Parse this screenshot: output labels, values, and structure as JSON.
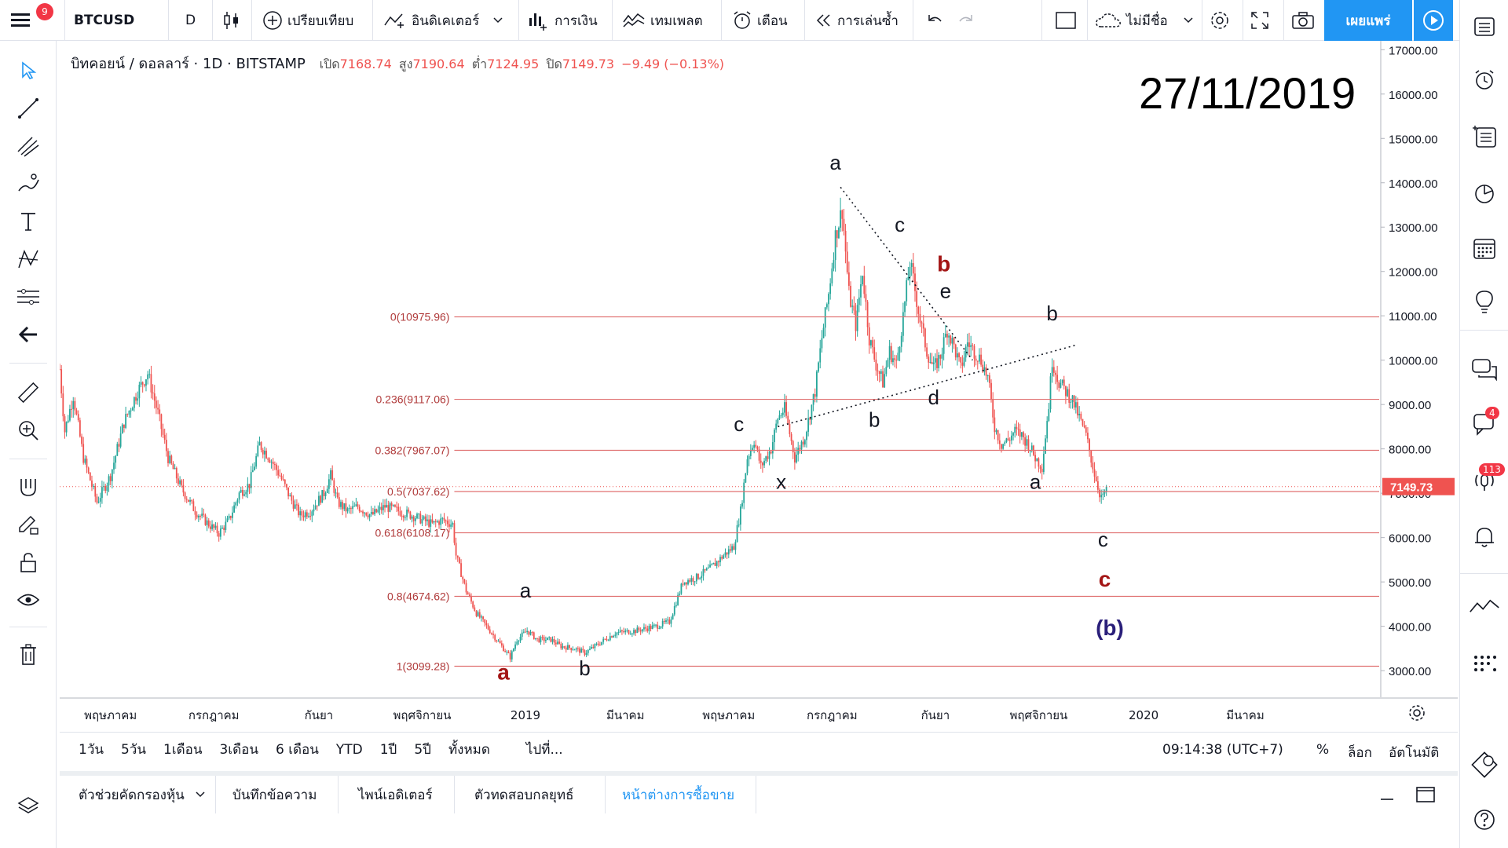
{
  "toolbar": {
    "notifications": "9",
    "ticker": "BTCUSD",
    "interval": "D",
    "compare": "เปรียบเทียบ",
    "indicators": "อินดิเคเตอร์",
    "financials": "การเงิน",
    "templates": "เทมเพลต",
    "alert": "เตือน",
    "replay": "การเล่นซ้ำ",
    "layout_name": "ไม่มีชื่อ",
    "publish": "เผยแพร่"
  },
  "legend": {
    "symbol": "บิทคอยน์ / ดอลลาร์ · 1D · BITSTAMP",
    "open_label": "เปิด",
    "open": "7168.74",
    "high_label": "สูง",
    "high": "7190.64",
    "low_label": "ต่ำ",
    "low": "7124.95",
    "close_label": "ปิด",
    "close": "7149.73",
    "change": "−9.49 (−0.13%)"
  },
  "date_stamp": "27/11/2019",
  "chart_data": {
    "type": "candlestick",
    "symbol": "BTCUSD",
    "exchange": "BITSTAMP",
    "interval": "1D",
    "y_axis": {
      "range": [
        2400,
        17200
      ],
      "ticks": [
        "3000.00",
        "4000.00",
        "5000.00",
        "6000.00",
        "7000.00",
        "8000.00",
        "9000.00",
        "10000.00",
        "11000.00",
        "12000.00",
        "13000.00",
        "14000.00",
        "15000.00",
        "16000.00",
        "17000.00"
      ]
    },
    "x_axis": {
      "ticks": [
        "พฤษภาคม",
        "กรกฎาคม",
        "กันยา",
        "พฤศจิกายน",
        "2019",
        "มีนาคม",
        "พฤษภาคม",
        "กรกฎาคม",
        "กันยา",
        "พฤศจิกายน",
        "2020",
        "มีนาคม"
      ],
      "tick_days": [
        30,
        91,
        153,
        214,
        275,
        334,
        395,
        456,
        517,
        578,
        640,
        700
      ]
    },
    "last_price": "7149.73",
    "price_path": [
      [
        0,
        9800
      ],
      [
        3,
        8400
      ],
      [
        8,
        9200
      ],
      [
        14,
        7800
      ],
      [
        22,
        6800
      ],
      [
        30,
        7400
      ],
      [
        38,
        8600
      ],
      [
        46,
        9300
      ],
      [
        52,
        9700
      ],
      [
        58,
        8800
      ],
      [
        64,
        7800
      ],
      [
        72,
        7100
      ],
      [
        80,
        6600
      ],
      [
        88,
        6300
      ],
      [
        94,
        6100
      ],
      [
        100,
        6400
      ],
      [
        106,
        7000
      ],
      [
        112,
        7200
      ],
      [
        118,
        8100
      ],
      [
        124,
        7800
      ],
      [
        130,
        7400
      ],
      [
        136,
        6900
      ],
      [
        142,
        6500
      ],
      [
        148,
        6600
      ],
      [
        152,
        6800
      ],
      [
        156,
        7000
      ],
      [
        160,
        7400
      ],
      [
        164,
        6800
      ],
      [
        170,
        6600
      ],
      [
        176,
        6700
      ],
      [
        184,
        6500
      ],
      [
        192,
        6700
      ],
      [
        200,
        6600
      ],
      [
        208,
        6500
      ],
      [
        214,
        6400
      ],
      [
        220,
        6300
      ],
      [
        226,
        6400
      ],
      [
        232,
        6300
      ],
      [
        234,
        5600
      ],
      [
        240,
        4800
      ],
      [
        246,
        4300
      ],
      [
        252,
        4000
      ],
      [
        258,
        3700
      ],
      [
        262,
        3500
      ],
      [
        266,
        3300
      ],
      [
        270,
        3700
      ],
      [
        276,
        3900
      ],
      [
        282,
        3700
      ],
      [
        290,
        3700
      ],
      [
        296,
        3550
      ],
      [
        304,
        3500
      ],
      [
        310,
        3400
      ],
      [
        318,
        3600
      ],
      [
        328,
        3850
      ],
      [
        340,
        3900
      ],
      [
        352,
        4000
      ],
      [
        360,
        4100
      ],
      [
        368,
        5000
      ],
      [
        376,
        5100
      ],
      [
        384,
        5300
      ],
      [
        392,
        5600
      ],
      [
        398,
        5800
      ],
      [
        402,
        6600
      ],
      [
        406,
        7800
      ],
      [
        410,
        8200
      ],
      [
        414,
        7600
      ],
      [
        420,
        8000
      ],
      [
        424,
        8700
      ],
      [
        428,
        8900
      ],
      [
        434,
        7800
      ],
      [
        440,
        8300
      ],
      [
        446,
        9300
      ],
      [
        450,
        10500
      ],
      [
        454,
        11500
      ],
      [
        458,
        12800
      ],
      [
        462,
        13400
      ],
      [
        466,
        11500
      ],
      [
        470,
        10800
      ],
      [
        474,
        12000
      ],
      [
        478,
        10500
      ],
      [
        482,
        9900
      ],
      [
        486,
        9500
      ],
      [
        490,
        10200
      ],
      [
        494,
        9900
      ],
      [
        498,
        11000
      ],
      [
        502,
        12200
      ],
      [
        504,
        11800
      ],
      [
        508,
        10900
      ],
      [
        512,
        10200
      ],
      [
        516,
        9800
      ],
      [
        520,
        10100
      ],
      [
        524,
        10700
      ],
      [
        528,
        10300
      ],
      [
        532,
        9800
      ],
      [
        536,
        10400
      ],
      [
        540,
        10200
      ],
      [
        544,
        10000
      ],
      [
        548,
        9600
      ],
      [
        552,
        8500
      ],
      [
        556,
        8100
      ],
      [
        560,
        8200
      ],
      [
        564,
        8400
      ],
      [
        568,
        8300
      ],
      [
        572,
        8100
      ],
      [
        576,
        7800
      ],
      [
        580,
        7600
      ],
      [
        584,
        9000
      ],
      [
        586,
        10000
      ],
      [
        590,
        9500
      ],
      [
        594,
        9300
      ],
      [
        598,
        9100
      ],
      [
        602,
        8700
      ],
      [
        606,
        8300
      ],
      [
        610,
        7600
      ],
      [
        614,
        7000
      ],
      [
        616,
        6900
      ],
      [
        618,
        7150
      ]
    ],
    "fibonacci": [
      {
        "label": "0(10975.96)",
        "price": 10975.96
      },
      {
        "label": "0.236(9117.06)",
        "price": 9117.06
      },
      {
        "label": "0.382(7967.07)",
        "price": 7967.07
      },
      {
        "label": "0.5(7037.62)",
        "price": 7037.62
      },
      {
        "label": "0.618(6108.17)",
        "price": 6108.17
      },
      {
        "label": "0.8(4674.62)",
        "price": 4674.62
      },
      {
        "label": "1(3099.28)",
        "price": 3099.28
      }
    ],
    "fib_color": "#e07070",
    "trendlines": [
      {
        "from": [
          461,
          13900
        ],
        "to": [
          539,
          10000
        ]
      },
      {
        "from": [
          424,
          8500
        ],
        "to": [
          601,
          10350
        ]
      }
    ],
    "wave_labels": [
      {
        "text": "a",
        "day": 275,
        "price": 4650,
        "color": "#131722"
      },
      {
        "text": "a",
        "day": 262,
        "price": 2800,
        "color": "#a31515",
        "bold": true
      },
      {
        "text": "b",
        "day": 310,
        "price": 2900,
        "color": "#131722"
      },
      {
        "text": "c",
        "day": 401,
        "price": 8400,
        "color": "#131722"
      },
      {
        "text": "x",
        "day": 426,
        "price": 7100,
        "color": "#131722"
      },
      {
        "text": "a",
        "day": 458,
        "price": 14300,
        "color": "#131722"
      },
      {
        "text": "b",
        "day": 481,
        "price": 8500,
        "color": "#131722"
      },
      {
        "text": "c",
        "day": 496,
        "price": 12900,
        "color": "#131722"
      },
      {
        "text": "b",
        "day": 522,
        "price": 12000,
        "color": "#a31515",
        "bold": true
      },
      {
        "text": "e",
        "day": 523,
        "price": 11400,
        "color": "#131722"
      },
      {
        "text": "d",
        "day": 516,
        "price": 9000,
        "color": "#131722"
      },
      {
        "text": "b",
        "day": 586,
        "price": 10900,
        "color": "#131722"
      },
      {
        "text": "a",
        "day": 576,
        "price": 7100,
        "color": "#131722"
      },
      {
        "text": "c",
        "day": 616,
        "price": 5800,
        "color": "#131722"
      },
      {
        "text": "c",
        "day": 617,
        "price": 4900,
        "color": "#a31515",
        "bold": true
      },
      {
        "text": "(b)",
        "day": 620,
        "price": 3800,
        "color": "#2a1f7a",
        "bold": true
      }
    ]
  },
  "range_bar": {
    "ranges": [
      "1วัน",
      "5วัน",
      "1เดือน",
      "3เดือน",
      "6 เดือน",
      "YTD",
      "1ปี",
      "5ปี",
      "ทั้งหมด"
    ],
    "goto": "ไปที่...",
    "clock": "09:14:38 (UTC+7)",
    "percent": "%",
    "log": "ล็อก",
    "auto": "อัตโนมัติ"
  },
  "bottom_tabs": [
    "ตัวช่วยคัดกรองหุ้น",
    "บันทึกข้อความ",
    "ไพน์เอดิเตอร์",
    "ตัวทดสอบกลยุทธ์",
    "หน้าต่างการซื้อขาย"
  ],
  "right_badges": {
    "chat": "4",
    "streams": "113"
  },
  "colors": {
    "up": "#26a69a",
    "down": "#ef5350",
    "accent": "#2196f3",
    "price_tag": "#ef5350"
  },
  "icons": [
    "menu-icon",
    "candles-icon",
    "plus-circle-icon",
    "indicators-icon",
    "financials-icon",
    "templates-icon",
    "alarm-icon",
    "replay-icon",
    "undo-icon",
    "redo-icon",
    "layout-icon",
    "cloud-icon",
    "gear-icon",
    "fullscreen-icon",
    "camera-icon",
    "play-icon"
  ]
}
